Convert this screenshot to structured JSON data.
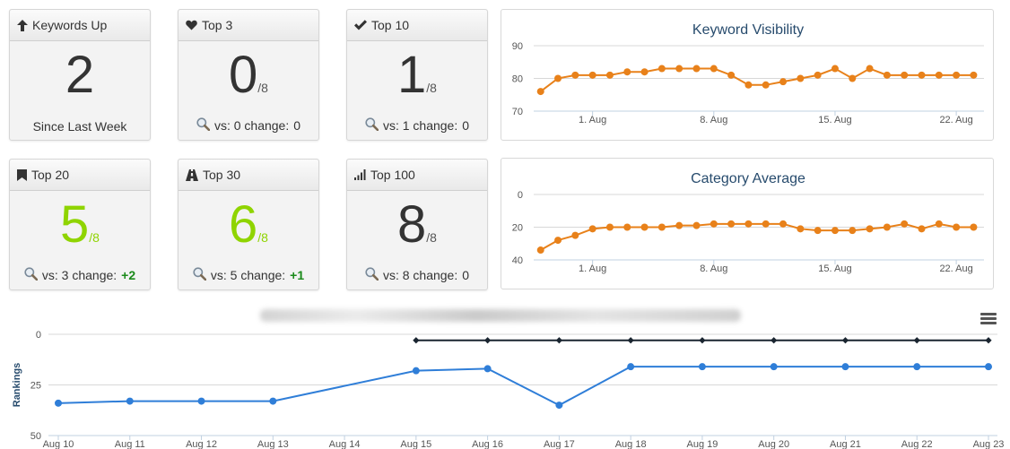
{
  "cards": [
    {
      "label": "Keywords Up",
      "icon": "arrow-up-icon",
      "value": "2",
      "denom": "",
      "green": false,
      "foot": "Since Last Week",
      "foot_prefix": "",
      "change": "",
      "positive": false
    },
    {
      "label": "Top 3",
      "icon": "heart-icon",
      "value": "0",
      "denom": "/8",
      "green": false,
      "foot": "",
      "foot_prefix": "vs: 0 change:",
      "change": "0",
      "positive": false
    },
    {
      "label": "Top 10",
      "icon": "checkmark-icon",
      "value": "1",
      "denom": "/8",
      "green": false,
      "foot": "",
      "foot_prefix": "vs: 1 change:",
      "change": "0",
      "positive": false
    },
    {
      "label": "Top 20",
      "icon": "bookmark-icon",
      "value": "5",
      "denom": "/8",
      "green": true,
      "foot": "",
      "foot_prefix": "vs: 3 change:",
      "change": "+2",
      "positive": true
    },
    {
      "label": "Top 30",
      "icon": "road-icon",
      "value": "6",
      "denom": "/8",
      "green": true,
      "foot": "",
      "foot_prefix": "vs: 5 change:",
      "change": "+1",
      "positive": true
    },
    {
      "label": "Top 100",
      "icon": "signal-bars-icon",
      "value": "8",
      "denom": "/8",
      "green": false,
      "foot": "",
      "foot_prefix": "vs: 8 change:",
      "change": "0",
      "positive": false
    }
  ],
  "colors": {
    "accent_orange": "#e8811a",
    "accent_blue": "#2f7ed8",
    "accent_dark": "#1a2530",
    "green_value": "#8fd400",
    "positive_change": "#1a8a1a",
    "title_color": "#274b6d"
  },
  "chart_data": [
    {
      "type": "line",
      "title": "Keyword Visibility",
      "x": [
        29,
        30,
        31,
        32,
        33,
        34,
        35,
        36,
        37,
        38,
        39,
        40,
        41,
        42,
        43,
        44,
        45,
        46,
        47,
        48,
        49,
        50,
        51,
        52,
        53,
        54
      ],
      "x_tick_values": [
        32,
        39,
        46,
        53
      ],
      "x_tick_labels": [
        "1. Aug",
        "8. Aug",
        "15. Aug",
        "22. Aug"
      ],
      "xlim": [
        28.6,
        54.6
      ],
      "series": [
        {
          "values": [
            76,
            80,
            81,
            81,
            81,
            82,
            82,
            83,
            83,
            83,
            83,
            81,
            78,
            78,
            79,
            80,
            81,
            83,
            80,
            83,
            81,
            81,
            81,
            81,
            81,
            81
          ]
        }
      ],
      "yticks": [
        70,
        80,
        90
      ],
      "ylim": [
        70,
        90
      ],
      "y_reversed": false,
      "grid": true
    },
    {
      "type": "line",
      "title": "Category Average",
      "x": [
        29,
        30,
        31,
        32,
        33,
        34,
        35,
        36,
        37,
        38,
        39,
        40,
        41,
        42,
        43,
        44,
        45,
        46,
        47,
        48,
        49,
        50,
        51,
        52,
        53,
        54
      ],
      "x_tick_values": [
        32,
        39,
        46,
        53
      ],
      "x_tick_labels": [
        "1. Aug",
        "8. Aug",
        "15. Aug",
        "22. Aug"
      ],
      "xlim": [
        28.6,
        54.6
      ],
      "series": [
        {
          "values": [
            34,
            28,
            25,
            21,
            20,
            20,
            20,
            20,
            19,
            19,
            18,
            18,
            18,
            18,
            18,
            21,
            22,
            22,
            22,
            21,
            20,
            18,
            21,
            18,
            20,
            20
          ]
        }
      ],
      "yticks": [
        0,
        20,
        40
      ],
      "ylim": [
        0,
        40
      ],
      "y_reversed": true,
      "grid": true
    },
    {
      "type": "line",
      "title": "",
      "ylabel": "Rankings",
      "categories": [
        "Aug 10",
        "Aug 11",
        "Aug 12",
        "Aug 13",
        "Aug 14",
        "Aug 15",
        "Aug 16",
        "Aug 17",
        "Aug 18",
        "Aug 19",
        "Aug 20",
        "Aug 21",
        "Aug 22",
        "Aug 23"
      ],
      "series": [
        {
          "values": [
            null,
            null,
            null,
            null,
            null,
            3,
            3,
            3,
            3,
            3,
            3,
            3,
            3,
            3
          ],
          "color": "#1a2530",
          "marker": "diamond"
        },
        {
          "values": [
            34,
            33,
            33,
            33,
            null,
            18,
            17,
            35,
            16,
            16,
            16,
            16,
            16,
            16
          ],
          "color": "#2f7ed8",
          "marker": "circle"
        }
      ],
      "yticks": [
        0,
        25,
        50
      ],
      "ylim": [
        0,
        50
      ],
      "y_reversed": true,
      "grid": true
    }
  ]
}
